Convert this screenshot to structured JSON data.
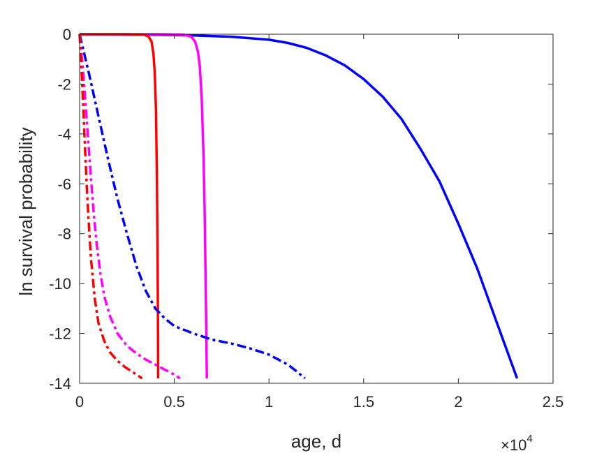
{
  "chart_data": {
    "type": "line",
    "title": "",
    "xlabel": "age, d",
    "ylabel": "ln survival probability",
    "x_multiplier_base": "×10",
    "x_multiplier_exp": "4",
    "xlim": [
      0,
      25000
    ],
    "ylim": [
      -14,
      0
    ],
    "xticks": [
      0,
      5000,
      10000,
      15000,
      20000,
      25000
    ],
    "xtick_labels": [
      "0",
      "0.5",
      "1",
      "1.5",
      "2",
      "2.5"
    ],
    "yticks": [
      0,
      -2,
      -4,
      -6,
      -8,
      -10,
      -12,
      -14
    ],
    "ytick_labels": [
      "0",
      "-2",
      "-4",
      "-6",
      "-8",
      "-10",
      "-12",
      "-14"
    ],
    "grid": false,
    "legend": "none",
    "series": [
      {
        "color": "#0000ff",
        "style": "solid",
        "x": [
          0,
          2000,
          4000,
          6000,
          8000,
          10000,
          11000,
          12000,
          13000,
          14000,
          15000,
          16000,
          17000,
          18000,
          19000,
          20000,
          21000,
          22000,
          23100
        ],
        "y": [
          0,
          -0.01,
          -0.02,
          -0.05,
          -0.1,
          -0.22,
          -0.35,
          -0.55,
          -0.85,
          -1.25,
          -1.8,
          -2.5,
          -3.4,
          -4.6,
          -5.9,
          -7.6,
          -9.4,
          -11.5,
          -13.8
        ]
      },
      {
        "color": "#ff00ff",
        "style": "solid",
        "x": [
          0,
          4000,
          5500,
          5900,
          6100,
          6250,
          6350,
          6450,
          6550,
          6600,
          6650,
          6700,
          6720
        ],
        "y": [
          0,
          0,
          -0.02,
          -0.1,
          -0.3,
          -0.7,
          -1.3,
          -2.6,
          -5.0,
          -7.0,
          -9.5,
          -12.5,
          -13.8
        ]
      },
      {
        "color": "#ff0000",
        "style": "solid",
        "x": [
          0,
          2500,
          3400,
          3650,
          3800,
          3900,
          3970,
          4030,
          4080,
          4120,
          4140,
          4150
        ],
        "y": [
          0,
          0,
          -0.02,
          -0.1,
          -0.3,
          -0.8,
          -1.6,
          -3.0,
          -5.5,
          -9.0,
          -12.0,
          -13.8
        ]
      },
      {
        "color": "#0000ff",
        "style": "dashdot",
        "x": [
          0,
          500,
          1000,
          1500,
          2000,
          2500,
          3000,
          3500,
          4000,
          4500,
          5000,
          6000,
          7000,
          8000,
          9000,
          10000,
          10500,
          11000,
          11500,
          11900
        ],
        "y": [
          0,
          -1.6,
          -3.3,
          -5.0,
          -6.6,
          -8.0,
          -9.3,
          -10.3,
          -11.0,
          -11.4,
          -11.7,
          -12.0,
          -12.25,
          -12.4,
          -12.6,
          -12.85,
          -13.05,
          -13.25,
          -13.55,
          -13.8
        ]
      },
      {
        "color": "#ff00ff",
        "style": "dashdot",
        "x": [
          0,
          150,
          300,
          450,
          600,
          750,
          900,
          1100,
          1300,
          1600,
          2000,
          2500,
          3000,
          3500,
          4000,
          4500,
          5000,
          5300
        ],
        "y": [
          0,
          -1.2,
          -2.6,
          -4.2,
          -5.8,
          -7.2,
          -8.4,
          -9.6,
          -10.5,
          -11.3,
          -12.0,
          -12.5,
          -12.8,
          -13.05,
          -13.25,
          -13.45,
          -13.65,
          -13.8
        ]
      },
      {
        "color": "#ff0000",
        "style": "dashdot",
        "x": [
          0,
          100,
          200,
          300,
          400,
          500,
          600,
          800,
          1000,
          1300,
          1600,
          2000,
          2400,
          2800,
          3100,
          3300
        ],
        "y": [
          0,
          -1.4,
          -3.0,
          -4.8,
          -6.4,
          -7.8,
          -9.0,
          -10.6,
          -11.6,
          -12.3,
          -12.75,
          -13.1,
          -13.35,
          -13.55,
          -13.7,
          -13.8
        ]
      }
    ]
  }
}
